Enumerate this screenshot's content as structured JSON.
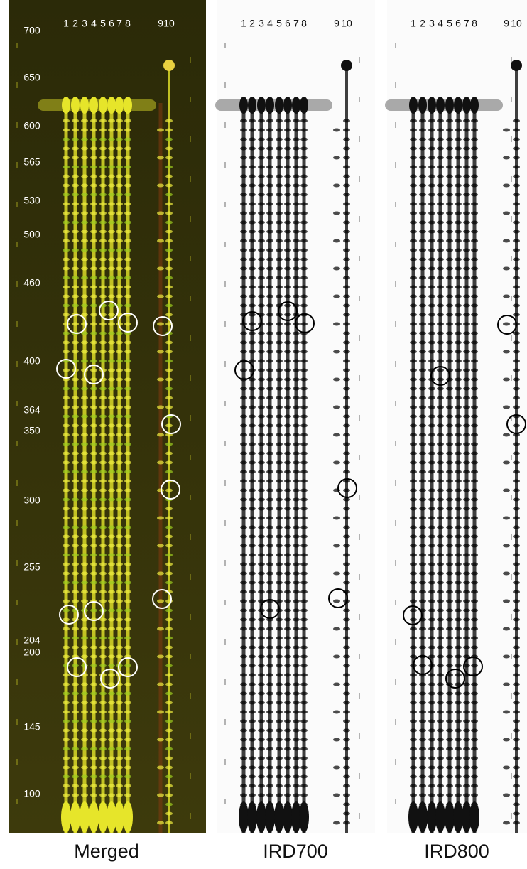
{
  "size_labels": [
    "700",
    "650",
    "600",
    "565",
    "530",
    "500",
    "460",
    "400",
    "364",
    "350",
    "300",
    "255",
    "204",
    "200",
    "145",
    "100"
  ],
  "lanes": [
    "1",
    "2",
    "3",
    "4",
    "5",
    "6",
    "7",
    "8",
    "9",
    "10"
  ],
  "panels": [
    "Merged",
    "IRD700",
    "IRD800"
  ]
}
